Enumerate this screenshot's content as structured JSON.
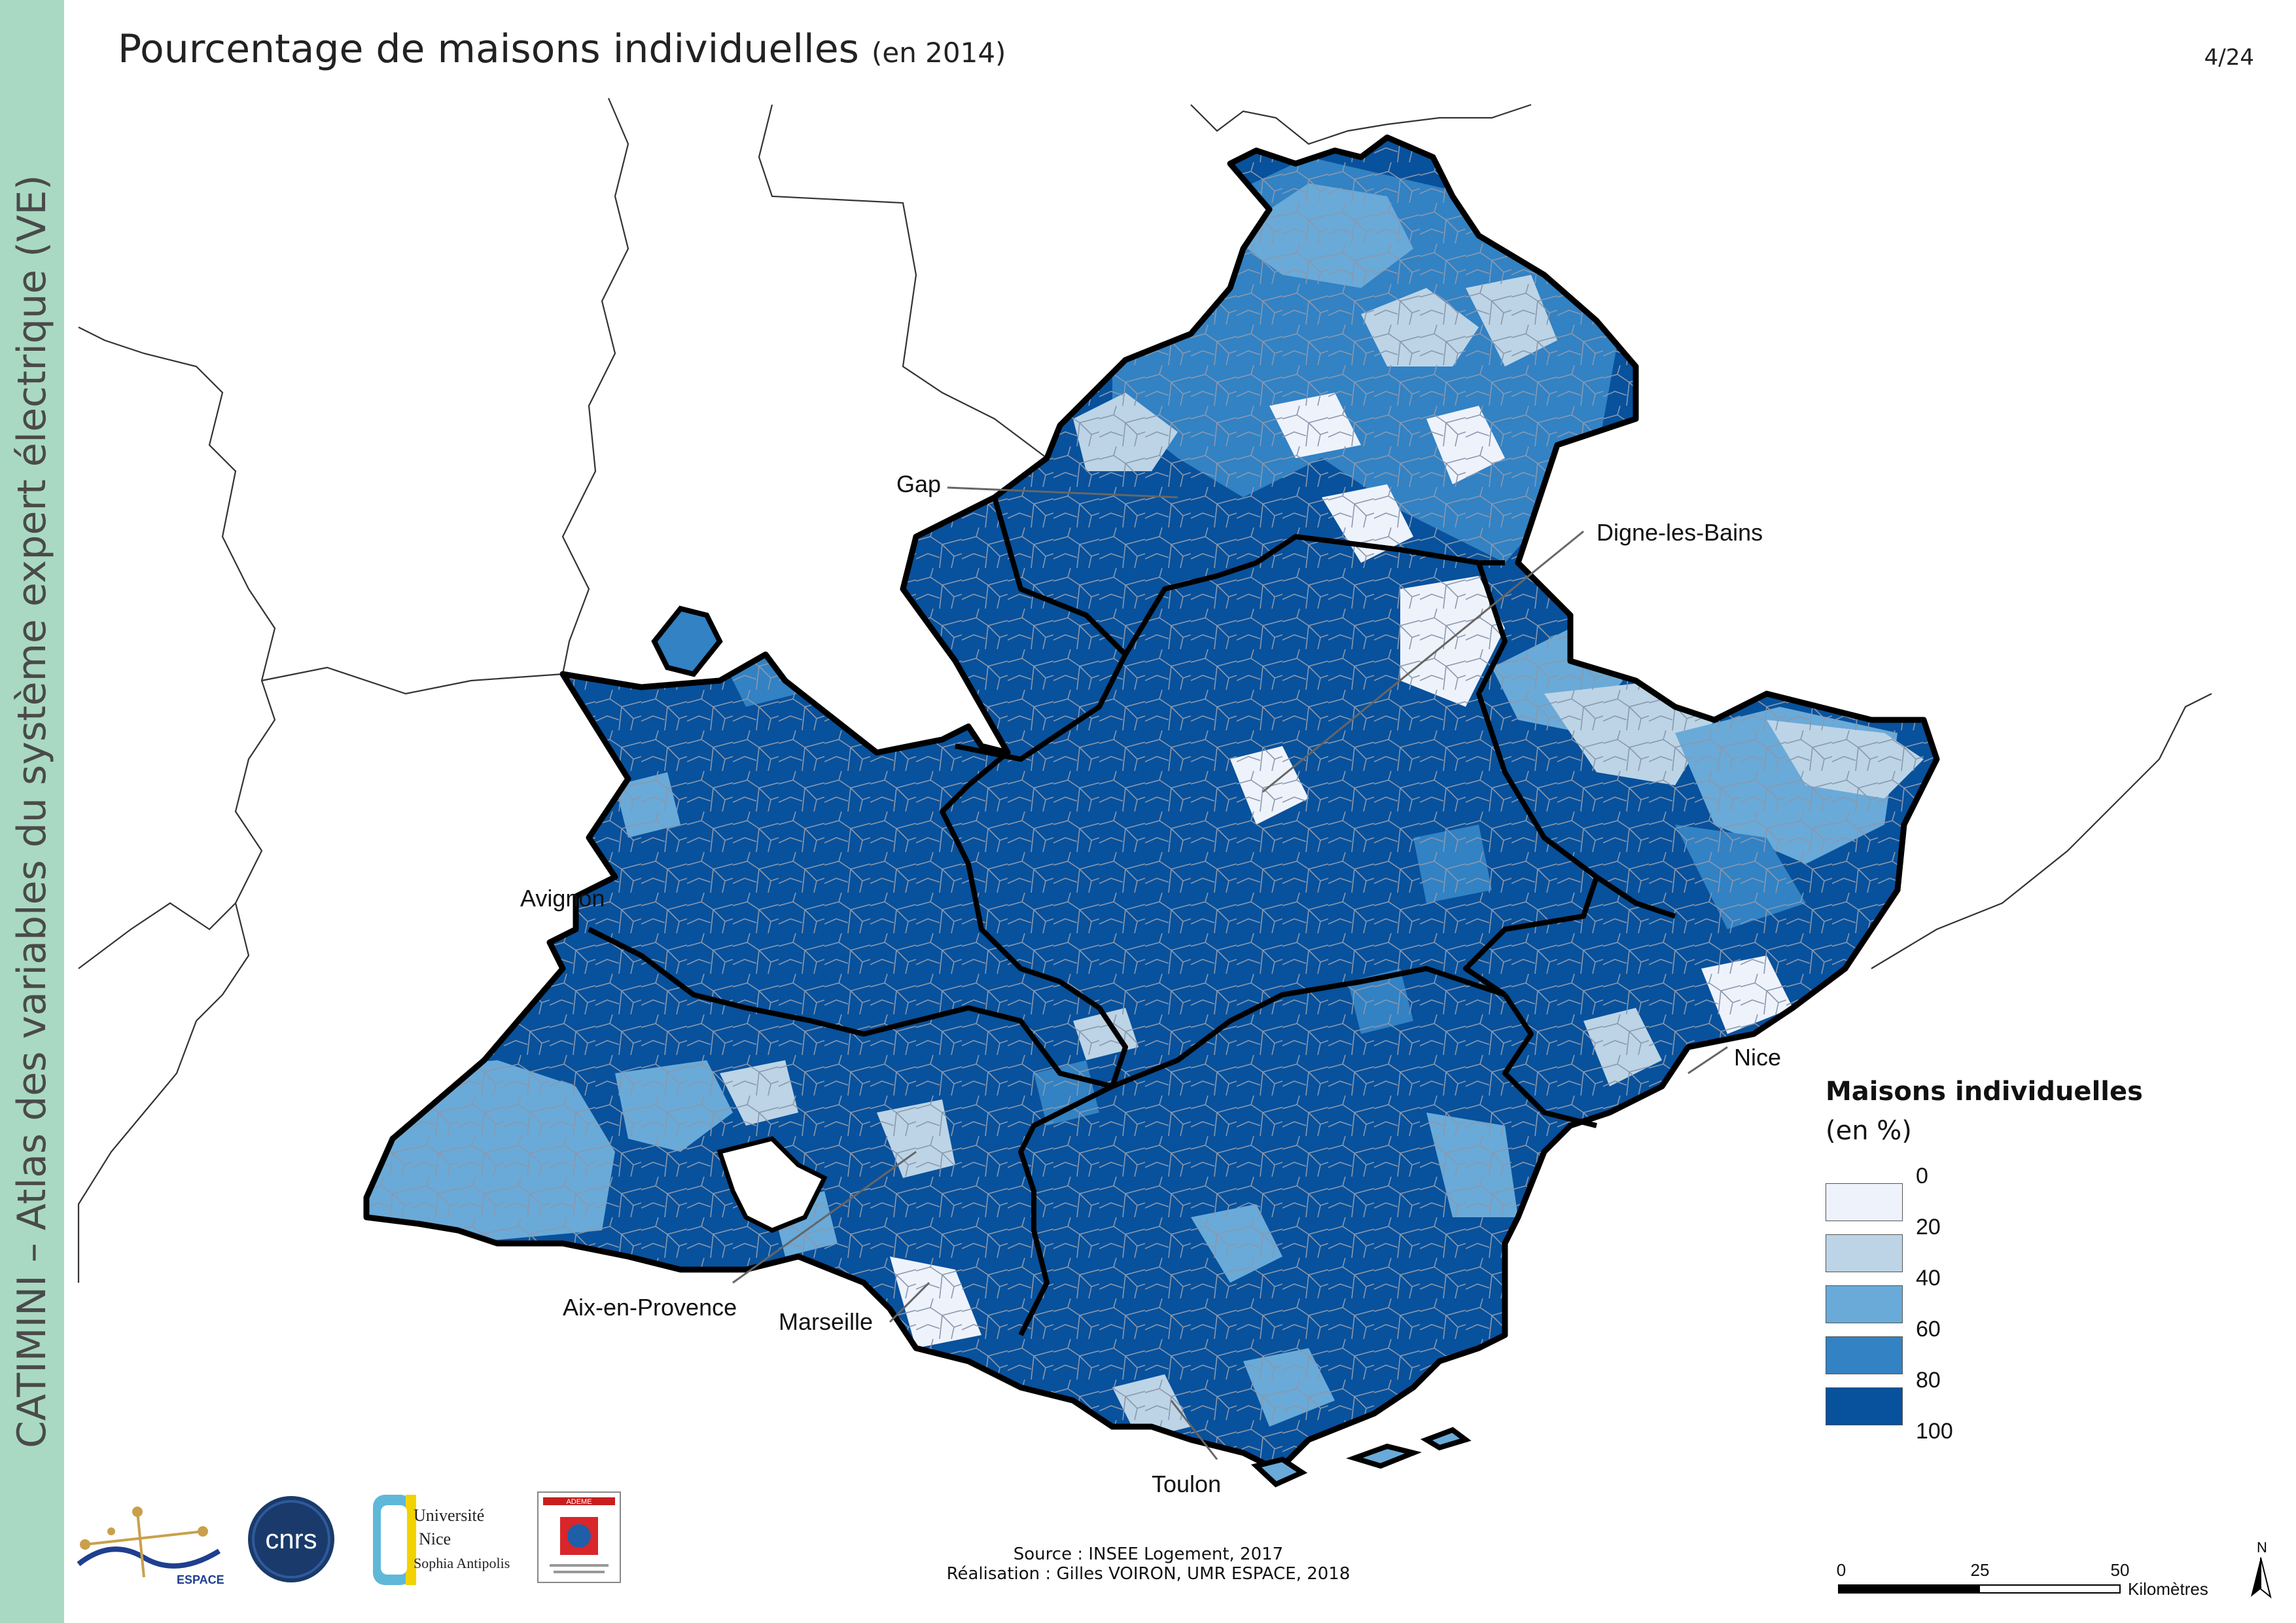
{
  "sidebar": {
    "text": "CATIMINI – Atlas des variables du système expert électrique (VE)"
  },
  "header": {
    "title": "Pourcentage de maisons individuelles",
    "subtitle": "(en 2014)",
    "page": "4/24"
  },
  "cities": {
    "gap": "Gap",
    "digne": "Digne-les-Bains",
    "avignon": "Avignon",
    "nice": "Nice",
    "aix": "Aix-en-Provence",
    "marseille": "Marseille",
    "toulon": "Toulon"
  },
  "legend": {
    "title": "Maisons individuelles",
    "unit": "(en %)",
    "ticks": [
      "0",
      "20",
      "40",
      "60",
      "80",
      "100"
    ],
    "colors": [
      "#eef2fb",
      "#bcd4e6",
      "#6aaad8",
      "#3282c4",
      "#08519c"
    ]
  },
  "source": {
    "line1": "Source : INSEE Logement, 2017",
    "line2": "Réalisation : Gilles VOIRON, UMR ESPACE, 2018"
  },
  "scale": {
    "ticks": [
      "0",
      "25",
      "50"
    ],
    "unit": "Kilomètres"
  },
  "north": "N",
  "logos": {
    "espace": "ESPACE",
    "cnrs": "cnrs",
    "unice1": "Université",
    "unice2": "Nice",
    "unice3": "Sophia Antipolis",
    "ademe": "ADEME"
  }
}
